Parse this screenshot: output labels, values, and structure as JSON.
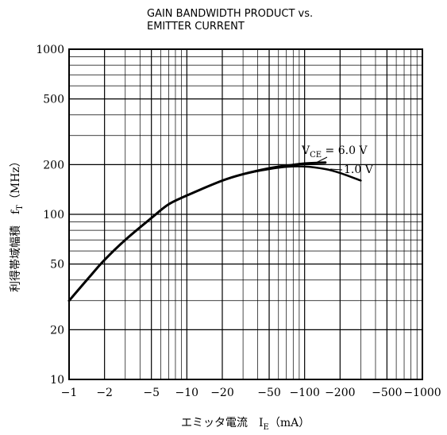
{
  "chart_data": {
    "type": "line",
    "title_line1": "GAIN BANDWIDTH PRODUCT vs.",
    "title_line2": "EMITTER CURRENT",
    "xlabel": {
      "main": "エミッタ電流　I",
      "sub": "E",
      "unit": "（mA）"
    },
    "ylabel": {
      "main": "利得帯域幅積　f",
      "sub": "T",
      "unit": "（MHz）"
    },
    "x_scale": "log",
    "y_scale": "log",
    "xlim": [
      -1,
      -1000
    ],
    "ylim": [
      10,
      1000
    ],
    "x_ticks": [
      -1,
      -2,
      -5,
      -10,
      -20,
      -50,
      -100,
      -200,
      -500,
      -1000
    ],
    "x_tick_labels": [
      "−1",
      "−2",
      "−5",
      "−10",
      "−20",
      "−50",
      "−100",
      "−200",
      "−500",
      "−1000"
    ],
    "y_ticks": [
      10,
      20,
      50,
      100,
      200,
      500,
      1000
    ],
    "y_tick_labels": [
      "10",
      "20",
      "50",
      "100",
      "200",
      "500",
      "1000"
    ],
    "grid": true,
    "series": [
      {
        "name": "VCE = 6.0 V",
        "x": [
          -1,
          -1.5,
          -2,
          -3,
          -5,
          -7,
          -10,
          -20,
          -30,
          -50,
          -70,
          -100,
          -150
        ],
        "y": [
          30,
          42,
          53,
          70,
          95,
          115,
          130,
          160,
          175,
          190,
          197,
          203,
          206
        ]
      },
      {
        "name": "1.0 V",
        "x": [
          -1,
          -1.5,
          -2,
          -3,
          -5,
          -7,
          -10,
          -20,
          -30,
          -50,
          -70,
          -100,
          -150,
          -200,
          -300
        ],
        "y": [
          30,
          42,
          53,
          70,
          95,
          115,
          130,
          160,
          175,
          188,
          194,
          195,
          188,
          178,
          160
        ]
      }
    ],
    "annotations": [
      {
        "text_main": "V",
        "text_sub": "CE",
        "text_rest": " = 6.0 V",
        "series": 0
      },
      {
        "text_main": "1.0 V",
        "series": 1
      }
    ]
  }
}
